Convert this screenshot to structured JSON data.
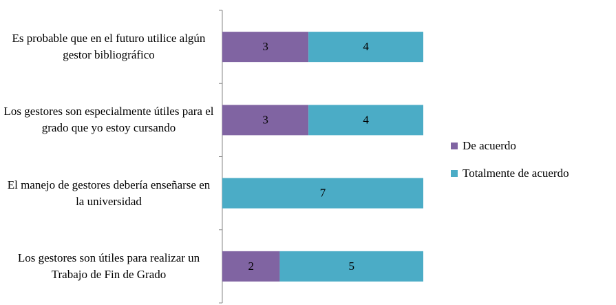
{
  "chart_data": {
    "type": "stacked_bar_horizontal",
    "categories": [
      "Es probable que en el futuro utilice algún gestor bibliográfico",
      "Los gestores son especialmente útiles para el grado que yo estoy cursando",
      "El manejo de gestores debería enseñarse en la universidad",
      "Los gestores son útiles para realizar un Trabajo de Fin de Grado"
    ],
    "series": [
      {
        "name": "De acuerdo",
        "color": "#8064a2",
        "values": [
          3,
          3,
          0,
          2
        ]
      },
      {
        "name": "Totalmente de acuerdo",
        "color": "#4bacc6",
        "values": [
          4,
          4,
          7,
          5
        ]
      }
    ],
    "xlim": [
      0,
      7
    ],
    "legend": "right"
  }
}
